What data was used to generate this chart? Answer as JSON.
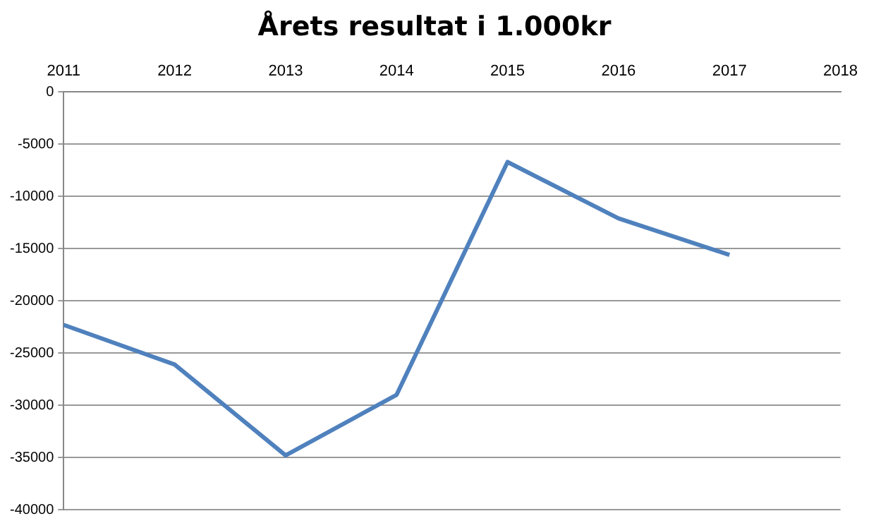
{
  "chart_data": {
    "type": "line",
    "title": "Årets resultat i 1.000kr",
    "categories": [
      "2011",
      "2012",
      "2013",
      "2014",
      "2015",
      "2016",
      "2017",
      "2018"
    ],
    "series": [
      {
        "color": "#4f81bd",
        "values": [
          -22300,
          -26100,
          -34800,
          -29000,
          -6700,
          -12100,
          -15600,
          null
        ]
      }
    ],
    "ylim": [
      -40000,
      0
    ],
    "yticks": [
      -40000,
      -35000,
      -30000,
      -25000,
      -20000,
      -15000,
      -10000,
      -5000,
      0
    ],
    "grid": "y",
    "legend": false,
    "marker": "none"
  }
}
